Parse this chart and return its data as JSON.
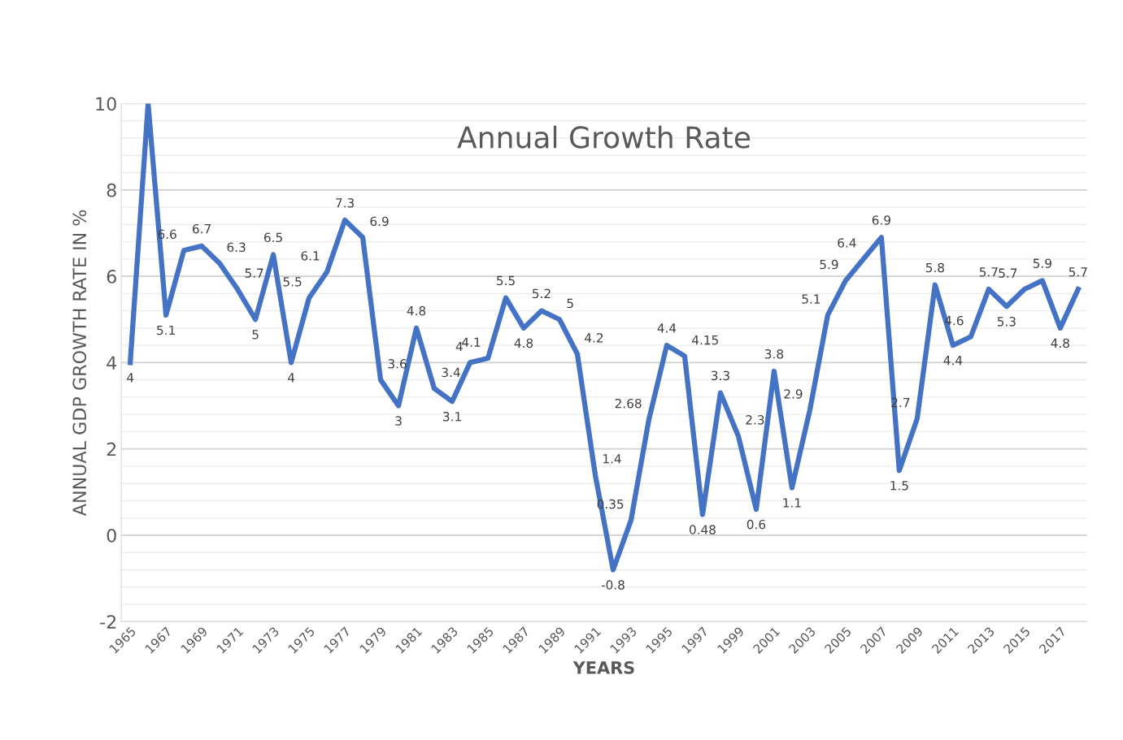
{
  "chart_data": {
    "type": "line",
    "title": "Annual Growth Rate",
    "xlabel": "YEARS",
    "ylabel": "ANNUAL GDP GROWTH RATE IN %",
    "categories": [
      "1965",
      null,
      "1967",
      null,
      "1969",
      null,
      "1971",
      null,
      "1973",
      null,
      "1975",
      null,
      "1977",
      null,
      "1979",
      null,
      "1981",
      null,
      "1983",
      null,
      "1985",
      null,
      "1987",
      null,
      "1989",
      null,
      "1991",
      null,
      "1993",
      null,
      "1995",
      null,
      "1997",
      null,
      "1999",
      null,
      "2001",
      null,
      "2003",
      null,
      "2005",
      null,
      "2007",
      null,
      "2009",
      null,
      "2011",
      null,
      "2013",
      null,
      "2015",
      null,
      "2017",
      null
    ],
    "series": [
      {
        "color": "#4472c4",
        "values": [
          4,
          10,
          5.1,
          6.6,
          6.7,
          6.3,
          5.7,
          5,
          6.5,
          4,
          5.5,
          6.1,
          7.3,
          6.9,
          3.6,
          3,
          4.8,
          3.4,
          3.1,
          4,
          4.1,
          5.5,
          4.8,
          5.2,
          5,
          4.2,
          1.4,
          -0.8,
          0.35,
          2.68,
          4.4,
          4.15,
          0.48,
          3.3,
          2.3,
          0.6,
          3.8,
          1.1,
          2.9,
          5.1,
          5.9,
          6.4,
          6.9,
          1.5,
          2.7,
          5.8,
          4.4,
          4.6,
          5.7,
          5.3,
          5.7,
          5.9,
          4.8,
          5.7
        ],
        "value_labels": [
          "4",
          null,
          "5.1",
          "6.6",
          "6.7",
          "6.3",
          "5.7",
          "5",
          "6.5",
          "4",
          "5.5",
          "6.1",
          "7.3",
          "6.9",
          "3.6",
          "3",
          "4.8",
          "3.4",
          "3.1",
          "4",
          "4.1",
          "5.5",
          "4.8",
          "5.2",
          "5",
          "4.2",
          "1.4",
          "-0.8",
          "0.35",
          "2.68",
          "4.4",
          "4.15",
          "0.48",
          "3.3",
          "2.3",
          "0.6",
          "3.8",
          "1.1",
          "2.9",
          "5.1",
          "5.9",
          "6.4",
          "6.9",
          "1.5",
          "2.7",
          "5.8",
          "4.4",
          "4.6",
          "5.7",
          "5.3",
          "5.7",
          "5.9",
          "4.8",
          "5.7"
        ]
      }
    ],
    "ylim": [
      -2,
      10
    ],
    "yticks": [
      -2,
      0,
      2,
      4,
      6,
      8,
      10
    ],
    "grid": "y",
    "marker": "none",
    "line_style": "solid"
  }
}
